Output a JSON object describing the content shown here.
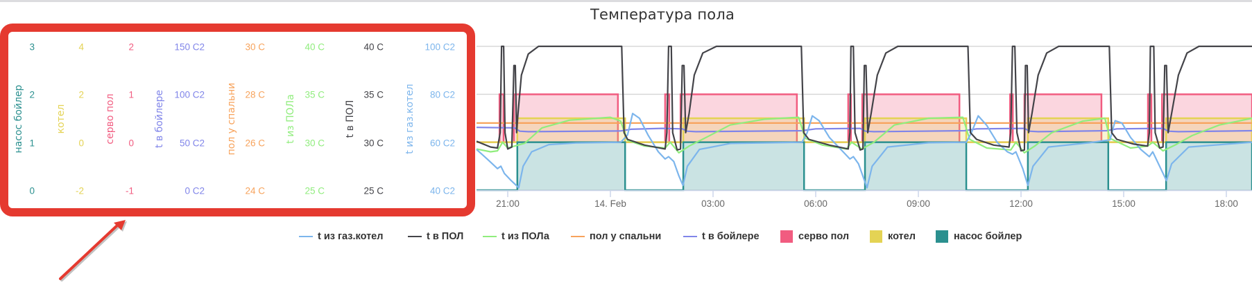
{
  "page": {
    "title": "Температура пола"
  },
  "colors": {
    "t_gaz_kotel": "#7cb5ec",
    "t_v_pol": "#434348",
    "t_iz_pola": "#90ed7d",
    "pol_u_spalni": "#f7a35c",
    "t_v_boilere": "#8085e9",
    "servo_pol": "#f15c80",
    "kotel": "#e4d354",
    "nasos_boiler": "#2b908f",
    "annotation": "#e53a30",
    "grid": "#e6e6e6",
    "axis": "#ccd6eb"
  },
  "annotation": {
    "type": "red-rounded-box-with-arrow",
    "target": "y-axes panel"
  },
  "chart_data": {
    "type": "line",
    "title": "Температура пола",
    "xlabel": "",
    "x_ticks": [
      "21:00",
      "14. Feb",
      "03:00",
      "06:00",
      "09:00",
      "12:00",
      "15:00",
      "18:00"
    ],
    "x_unit": "hours since 13 Feb 21:00",
    "x_range": [
      -0.92,
      21.75
    ],
    "grid": true,
    "legend_position": "bottom",
    "y_axes": [
      {
        "id": "nasos_boiler",
        "title": "насос бойлер",
        "ticks": [
          "0",
          "1",
          "2",
          "3"
        ],
        "range": [
          0,
          3
        ]
      },
      {
        "id": "kotel",
        "title": "котел",
        "ticks": [
          "-2",
          "0",
          "2",
          "4"
        ],
        "range": [
          -2,
          4
        ]
      },
      {
        "id": "servo_pol",
        "title": "серво пол",
        "ticks": [
          "-1",
          "0",
          "1",
          "2"
        ],
        "range": [
          -1,
          2
        ]
      },
      {
        "id": "t_v_boilere",
        "title": "t в бойлере",
        "ticks": [
          "0 C2",
          "50 C2",
          "100 C2",
          "150 C2"
        ],
        "range": [
          0,
          150
        ]
      },
      {
        "id": "pol_u_spalni",
        "title": "пол у спальни",
        "ticks": [
          "24 C",
          "26 C",
          "28 C",
          "30 C"
        ],
        "range": [
          24,
          30
        ]
      },
      {
        "id": "t_iz_pola",
        "title": "t из ПОЛа",
        "ticks": [
          "25 C",
          "30 C",
          "35 C",
          "40 C"
        ],
        "range": [
          25,
          40
        ]
      },
      {
        "id": "t_v_pol",
        "title": "t в ПОЛ",
        "ticks": [
          "25 C",
          "30 C",
          "35 C",
          "40 C"
        ],
        "range": [
          25,
          40
        ]
      },
      {
        "id": "t_gaz_kotel",
        "title": "t из газ.котел",
        "ticks": [
          "40 C2",
          "60 C2",
          "80 C2",
          "100 C2"
        ],
        "range": [
          40,
          100
        ]
      }
    ],
    "series": [
      {
        "name": "t из газ.котел",
        "axis": "t_gaz_kotel",
        "kind": "line",
        "points": [
          [
            -0.92,
            57
          ],
          [
            -0.6,
            53
          ],
          [
            -0.3,
            49
          ],
          [
            -0.2,
            50
          ],
          [
            -0.1,
            47
          ],
          [
            0.1,
            44
          ],
          [
            0.25,
            42
          ],
          [
            0.32,
            41
          ],
          [
            0.45,
            50
          ],
          [
            0.7,
            56
          ],
          [
            1.2,
            59
          ],
          [
            2.0,
            59.7
          ],
          [
            3.3,
            60
          ],
          [
            3.5,
            63
          ],
          [
            3.65,
            72
          ],
          [
            3.85,
            70
          ],
          [
            4.1,
            63
          ],
          [
            4.4,
            56
          ],
          [
            4.6,
            53
          ],
          [
            4.7,
            54
          ],
          [
            4.85,
            52
          ],
          [
            5.0,
            46
          ],
          [
            5.12,
            42
          ],
          [
            5.25,
            50
          ],
          [
            5.6,
            57
          ],
          [
            6.5,
            59.5
          ],
          [
            8.6,
            60
          ],
          [
            8.75,
            64
          ],
          [
            8.9,
            71
          ],
          [
            9.1,
            69
          ],
          [
            9.4,
            62
          ],
          [
            9.8,
            56
          ],
          [
            10.0,
            53
          ],
          [
            10.1,
            54
          ],
          [
            10.25,
            51
          ],
          [
            10.4,
            45
          ],
          [
            10.5,
            41
          ],
          [
            10.65,
            50
          ],
          [
            11.1,
            58
          ],
          [
            12.3,
            59.8
          ],
          [
            13.4,
            60
          ],
          [
            13.55,
            64
          ],
          [
            13.75,
            71
          ],
          [
            14.0,
            67
          ],
          [
            14.3,
            60
          ],
          [
            14.6,
            56
          ],
          [
            14.75,
            55
          ],
          [
            14.85,
            56
          ],
          [
            15.05,
            49
          ],
          [
            15.2,
            42
          ],
          [
            15.35,
            50
          ],
          [
            15.8,
            58
          ],
          [
            17.0,
            59.8
          ],
          [
            17.6,
            61
          ],
          [
            17.75,
            69
          ],
          [
            17.95,
            68
          ],
          [
            18.2,
            62
          ],
          [
            18.5,
            57
          ],
          [
            18.75,
            54
          ],
          [
            18.85,
            56
          ],
          [
            19.05,
            50
          ],
          [
            19.25,
            44
          ],
          [
            19.4,
            51
          ],
          [
            19.9,
            58
          ],
          [
            21.75,
            60
          ]
        ]
      },
      {
        "name": "t в ПОЛ",
        "axis": "t_v_pol",
        "kind": "line",
        "points": [
          [
            -0.92,
            30.1
          ],
          [
            -0.5,
            29.5
          ],
          [
            -0.3,
            29.4
          ],
          [
            -0.22,
            31
          ],
          [
            -0.18,
            42
          ],
          [
            -0.12,
            42
          ],
          [
            -0.08,
            31
          ],
          [
            0.0,
            29.3
          ],
          [
            0.12,
            29.5
          ],
          [
            0.18,
            38
          ],
          [
            0.22,
            38
          ],
          [
            0.26,
            31
          ],
          [
            0.3,
            33
          ],
          [
            0.4,
            37
          ],
          [
            0.6,
            39.2
          ],
          [
            0.9,
            40.5
          ],
          [
            3.25,
            41
          ],
          [
            3.33,
            41
          ],
          [
            3.4,
            31
          ],
          [
            3.5,
            30.3
          ],
          [
            4.0,
            29.7
          ],
          [
            4.6,
            29.3
          ],
          [
            4.65,
            31
          ],
          [
            4.7,
            42
          ],
          [
            4.78,
            42
          ],
          [
            4.82,
            31
          ],
          [
            4.95,
            29.2
          ],
          [
            5.05,
            29.3
          ],
          [
            5.1,
            38
          ],
          [
            5.15,
            38
          ],
          [
            5.2,
            31
          ],
          [
            5.3,
            33
          ],
          [
            5.45,
            37
          ],
          [
            5.7,
            39.3
          ],
          [
            6.1,
            40.5
          ],
          [
            8.5,
            41
          ],
          [
            8.58,
            41
          ],
          [
            8.65,
            31
          ],
          [
            8.8,
            30.3
          ],
          [
            9.4,
            29.7
          ],
          [
            9.95,
            29.3
          ],
          [
            10.0,
            31
          ],
          [
            10.03,
            42
          ],
          [
            10.1,
            42
          ],
          [
            10.15,
            31
          ],
          [
            10.3,
            29.2
          ],
          [
            10.38,
            29.3
          ],
          [
            10.42,
            38
          ],
          [
            10.47,
            38
          ],
          [
            10.52,
            31
          ],
          [
            10.62,
            33
          ],
          [
            10.8,
            37
          ],
          [
            11.05,
            39.3
          ],
          [
            11.4,
            40.5
          ],
          [
            13.35,
            41
          ],
          [
            13.45,
            41
          ],
          [
            13.52,
            31
          ],
          [
            13.7,
            30.3
          ],
          [
            14.2,
            29.7
          ],
          [
            14.65,
            29.5
          ],
          [
            14.7,
            31
          ],
          [
            14.75,
            42
          ],
          [
            14.82,
            42
          ],
          [
            14.88,
            31
          ],
          [
            15.0,
            29.1
          ],
          [
            15.1,
            29.2
          ],
          [
            15.13,
            38
          ],
          [
            15.18,
            38
          ],
          [
            15.22,
            31
          ],
          [
            15.32,
            33
          ],
          [
            15.5,
            37
          ],
          [
            15.75,
            39.3
          ],
          [
            16.1,
            40.5
          ],
          [
            17.5,
            41
          ],
          [
            17.58,
            41
          ],
          [
            17.65,
            31
          ],
          [
            17.8,
            30.3
          ],
          [
            18.3,
            29.8
          ],
          [
            18.7,
            29.6
          ],
          [
            18.75,
            31
          ],
          [
            18.78,
            42
          ],
          [
            18.88,
            42
          ],
          [
            18.92,
            31
          ],
          [
            19.05,
            29.4
          ],
          [
            19.15,
            29.5
          ],
          [
            19.2,
            38
          ],
          [
            19.25,
            38
          ],
          [
            19.3,
            31
          ],
          [
            19.4,
            33
          ],
          [
            19.6,
            37
          ],
          [
            19.85,
            39.3
          ],
          [
            20.2,
            40.5
          ],
          [
            21.75,
            41
          ]
        ]
      },
      {
        "name": "t из ПОЛа",
        "axis": "t_iz_pola",
        "kind": "line",
        "points": [
          [
            -0.92,
            29.3
          ],
          [
            -0.5,
            29
          ],
          [
            -0.3,
            29.1
          ],
          [
            -0.15,
            30
          ],
          [
            0.0,
            29.4
          ],
          [
            0.2,
            29.6
          ],
          [
            0.5,
            29.9
          ],
          [
            1.0,
            31.5
          ],
          [
            1.8,
            32.3
          ],
          [
            3.0,
            32.6
          ],
          [
            3.3,
            32.2
          ],
          [
            3.5,
            30.2
          ],
          [
            4.0,
            29.6
          ],
          [
            4.6,
            29.4
          ],
          [
            4.75,
            30
          ],
          [
            5.0,
            28.9
          ],
          [
            5.3,
            29.6
          ],
          [
            5.8,
            30.5
          ],
          [
            6.5,
            31.8
          ],
          [
            7.5,
            32.4
          ],
          [
            8.5,
            32.6
          ],
          [
            8.7,
            30.4
          ],
          [
            9.2,
            29.7
          ],
          [
            9.9,
            29.3
          ],
          [
            10.05,
            30
          ],
          [
            10.35,
            29.3
          ],
          [
            10.7,
            30
          ],
          [
            11.3,
            31.8
          ],
          [
            12.3,
            32.5
          ],
          [
            13.3,
            32.6
          ],
          [
            13.5,
            30.3
          ],
          [
            14.0,
            29.4
          ],
          [
            14.7,
            29.2
          ],
          [
            14.85,
            30
          ],
          [
            15.1,
            28.9
          ],
          [
            15.4,
            29.6
          ],
          [
            15.9,
            31
          ],
          [
            16.8,
            32.2
          ],
          [
            17.45,
            32.5
          ],
          [
            17.6,
            30.4
          ],
          [
            18.2,
            29.4
          ],
          [
            18.7,
            29.6
          ],
          [
            18.85,
            30
          ],
          [
            19.15,
            29.1
          ],
          [
            19.5,
            29.7
          ],
          [
            20.0,
            30.7
          ],
          [
            20.8,
            31.8
          ],
          [
            21.75,
            32.5
          ]
        ]
      },
      {
        "name": "пол у спальни",
        "axis": "pol_u_spalni",
        "kind": "line",
        "points": [
          [
            -0.92,
            26.8
          ],
          [
            21.75,
            26.8
          ]
        ]
      },
      {
        "name": "t в бойлере",
        "axis": "t_v_boilere",
        "kind": "line",
        "points": [
          [
            -0.92,
            65.5
          ],
          [
            0.2,
            65
          ],
          [
            0.35,
            61.5
          ],
          [
            0.6,
            61
          ],
          [
            3.3,
            61.8
          ],
          [
            3.6,
            63.5
          ],
          [
            4.5,
            64.5
          ],
          [
            5.1,
            64
          ],
          [
            5.25,
            61.5
          ],
          [
            5.5,
            61
          ],
          [
            8.6,
            62
          ],
          [
            9.0,
            64
          ],
          [
            10.3,
            64.5
          ],
          [
            10.45,
            61.5
          ],
          [
            10.7,
            61
          ],
          [
            13.35,
            62
          ],
          [
            13.7,
            64
          ],
          [
            15.1,
            64.5
          ],
          [
            15.25,
            61.5
          ],
          [
            15.5,
            61
          ],
          [
            17.5,
            62
          ],
          [
            17.8,
            64
          ],
          [
            19.15,
            64.5
          ],
          [
            19.3,
            61.5
          ],
          [
            19.6,
            61
          ],
          [
            21.75,
            62
          ]
        ]
      },
      {
        "name": "серво пол",
        "axis": "servo_pol",
        "kind": "step-area",
        "on_intervals": [
          [
            -0.24,
            -0.12
          ],
          [
            0.18,
            3.22
          ],
          [
            4.6,
            4.72
          ],
          [
            5.05,
            8.45
          ],
          [
            9.95,
            10.03
          ],
          [
            10.36,
            13.2
          ],
          [
            14.68,
            14.76
          ],
          [
            15.1,
            17.35
          ],
          [
            18.71,
            18.81
          ],
          [
            19.12,
            21.75
          ]
        ],
        "on_value": 1,
        "off_value": 0
      },
      {
        "name": "котел",
        "axis": "kotel",
        "kind": "step-area",
        "on_intervals": [
          [
            0.28,
            3.43
          ],
          [
            5.13,
            8.66
          ],
          [
            10.44,
            13.4
          ],
          [
            15.2,
            17.55
          ],
          [
            19.24,
            21.75
          ]
        ],
        "on_value": 1,
        "off_value": 0
      },
      {
        "name": "насос бойлер",
        "axis": "nasos_boiler",
        "kind": "step-area",
        "on_intervals": [
          [
            0.28,
            3.43
          ],
          [
            5.13,
            8.66
          ],
          [
            10.44,
            13.4
          ],
          [
            15.2,
            17.55
          ],
          [
            19.24,
            21.75
          ]
        ],
        "on_value": 1,
        "off_value": 0
      }
    ]
  },
  "legend": {
    "items": [
      {
        "label": "t из газ.котел",
        "symbol": "line",
        "color": "#7cb5ec"
      },
      {
        "label": "t в ПОЛ",
        "symbol": "line",
        "color": "#434348"
      },
      {
        "label": "t из ПОЛа",
        "symbol": "line",
        "color": "#90ed7d"
      },
      {
        "label": "пол у спальни",
        "symbol": "line",
        "color": "#f7a35c"
      },
      {
        "label": "t в бойлере",
        "symbol": "line",
        "color": "#8085e9"
      },
      {
        "label": "серво пол",
        "symbol": "square",
        "color": "#f15c80"
      },
      {
        "label": "котел",
        "symbol": "square",
        "color": "#e4d354"
      },
      {
        "label": "насос бойлер",
        "symbol": "square",
        "color": "#2b908f"
      }
    ]
  }
}
